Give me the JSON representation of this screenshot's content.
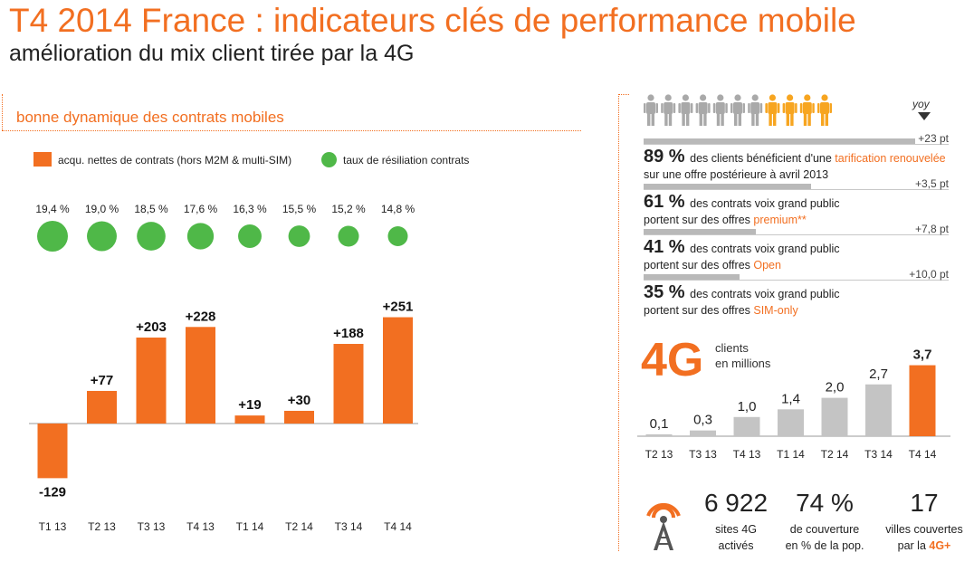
{
  "header": {
    "title": "T4 2014 France : indicateurs clés de performance mobile",
    "subtitle": "amélioration du mix client tirée par la 4G"
  },
  "left_panel": {
    "heading": "bonne dynamique des contrats mobiles",
    "legend": {
      "bars": "acqu. nettes de contrats (hors M2M & multi-SIM)",
      "circles": "taux de résiliation contrats"
    }
  },
  "chart_data": [
    {
      "type": "bar",
      "categories": [
        "T1 13",
        "T2 13",
        "T3 13",
        "T4 13",
        "T1 14",
        "T2 14",
        "T3 14",
        "T4 14"
      ],
      "series": [
        {
          "name": "acqu. nettes de contrats (hors M2M & multi-SIM)",
          "values": [
            -129,
            77,
            203,
            228,
            19,
            30,
            188,
            251
          ],
          "labels": [
            "-129",
            "+77",
            "+203",
            "+228",
            "+19",
            "+30",
            "+188",
            "+251"
          ],
          "color": "#f26f21"
        },
        {
          "name": "taux de résiliation contrats",
          "values": [
            19.4,
            19.0,
            18.5,
            17.6,
            16.3,
            15.5,
            15.2,
            14.8
          ],
          "labels": [
            "19,4 %",
            "19,0 %",
            "18,5 %",
            "17,6 %",
            "16,3 %",
            "15,5 %",
            "15,2 %",
            "14,8 %"
          ],
          "color": "#4fb848"
        }
      ]
    },
    {
      "type": "bar",
      "title": "4G",
      "categories": [
        "T2 13",
        "T3 13",
        "T4 13",
        "T1 14",
        "T2 14",
        "T3 14",
        "T4 14"
      ],
      "values": [
        0.1,
        0.3,
        1.0,
        1.4,
        2.0,
        2.7,
        3.7
      ],
      "labels": [
        "0,1",
        "0,3",
        "1,0",
        "1,4",
        "2,0",
        "2,7",
        "3,7"
      ],
      "colors": [
        "#c4c4c4",
        "#c4c4c4",
        "#c4c4c4",
        "#c4c4c4",
        "#c4c4c4",
        "#c4c4c4",
        "#f26f21"
      ]
    }
  ],
  "right_panel": {
    "people": {
      "total": 11,
      "highlighted": 4,
      "color_grey": "#a9a9a9",
      "color_orange": "#f7a520"
    },
    "yoy_label": "yoy",
    "kpis": [
      {
        "pct": "89 %",
        "text1": "des clients bénéficient d'une ",
        "hl1": "tarification renouvelée",
        "line2": "sur une offre postérieure à avril 2013",
        "hl2": "",
        "delta": "+23 pt",
        "share": 0.89
      },
      {
        "pct": "61 %",
        "text1": "des contrats voix grand public",
        "hl1": "",
        "line2": "portent sur des offres ",
        "hl2": "premium**",
        "delta": "+3,5 pt",
        "share": 0.61
      },
      {
        "pct": "41 %",
        "text1": "des contrats voix grand public",
        "hl1": "",
        "line2": "portent sur des offres ",
        "hl2": "Open",
        "delta": "+7,8 pt",
        "share": 0.41
      },
      {
        "pct": "35 %",
        "text1": "des contrats voix grand public",
        "hl1": "",
        "line2": "portent sur des offres ",
        "hl2": "SIM-only",
        "delta": "+10,0 pt",
        "share": 0.35
      }
    ],
    "fourg": {
      "big": "4G",
      "line1": "clients",
      "line2": "en millions"
    },
    "stats": [
      {
        "big": "6 922",
        "line1": "sites 4G",
        "line2": "activés",
        "hl": ""
      },
      {
        "big": "74 %",
        "line1": "de couverture",
        "line2": "en % de la pop.",
        "hl": ""
      },
      {
        "big": "17",
        "line1": "villes couvertes",
        "line2": "par la ",
        "hl": "4G+"
      }
    ]
  }
}
